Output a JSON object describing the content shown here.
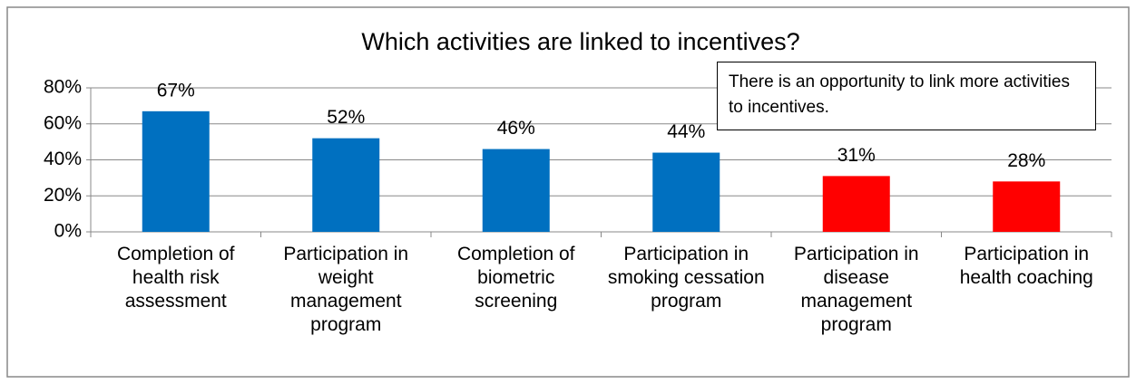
{
  "chart_data": {
    "type": "bar",
    "title": "Which activities are linked to incentives?",
    "categories": [
      "Completion of health risk assessment",
      "Participation in weight management program",
      "Completion of biometric screening",
      "Participation in smoking cessation program",
      "Participation in disease management program",
      "Participation in health coaching"
    ],
    "values": [
      67,
      52,
      46,
      44,
      31,
      28
    ],
    "value_labels": [
      "67%",
      "52%",
      "46%",
      "44%",
      "31%",
      "28%"
    ],
    "colors": [
      "#0070c0",
      "#0070c0",
      "#0070c0",
      "#0070c0",
      "#ff0000",
      "#ff0000"
    ],
    "ylim": [
      0,
      80
    ],
    "yticks": [
      {
        "value": 0,
        "label": "0%"
      },
      {
        "value": 20,
        "label": "20%"
      },
      {
        "value": 40,
        "label": "40%"
      },
      {
        "value": 60,
        "label": "60%"
      },
      {
        "value": 80,
        "label": "80%"
      }
    ],
    "grid": true,
    "annotation": "There is an opportunity to link more activities to incentives."
  }
}
